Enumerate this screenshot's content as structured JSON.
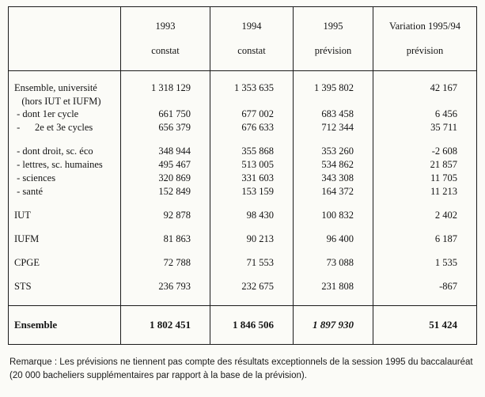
{
  "document": {
    "table": {
      "header": {
        "label_column": "",
        "columns": [
          {
            "line1": "1993",
            "line2": "constat"
          },
          {
            "line1": "1994",
            "line2": "constat"
          },
          {
            "line1": "1995",
            "line2": "prévision"
          },
          {
            "line1": "Variation 1995/94",
            "line2": "prévision"
          }
        ]
      },
      "rows": [
        {
          "label": "Ensemble, université",
          "values": [
            "1 318 129",
            "1 353 635",
            "1 395 802",
            "42 167"
          ],
          "style": "main"
        },
        {
          "label": "   (hors IUT et IUFM)",
          "values": [
            "",
            "",
            "",
            ""
          ],
          "style": "cont"
        },
        {
          "label": " - dont 1er cycle",
          "values": [
            "661 750",
            "677 002",
            "683 458",
            "6 456"
          ],
          "style": "main"
        },
        {
          "label": " -      2e et 3e cycles",
          "values": [
            "656 379",
            "676 633",
            "712 344",
            "35 711"
          ],
          "style": "main"
        },
        {
          "label": "",
          "values": [
            "",
            "",
            "",
            ""
          ],
          "style": "spacer"
        },
        {
          "label": " - dont droit, sc. éco",
          "values": [
            "348 944",
            "355 868",
            "353 260",
            "-2 608"
          ],
          "style": "main"
        },
        {
          "label": " - lettres, sc. humaines",
          "values": [
            "495 467",
            "513 005",
            "534 862",
            "21 857"
          ],
          "style": "main"
        },
        {
          "label": " - sciences",
          "values": [
            "320 869",
            "331 603",
            "343 308",
            "11 705"
          ],
          "style": "main"
        },
        {
          "label": " - santé",
          "values": [
            "152 849",
            "153 159",
            "164 372",
            "11 213"
          ],
          "style": "main"
        },
        {
          "label": "",
          "values": [
            "",
            "",
            "",
            ""
          ],
          "style": "spacer"
        },
        {
          "label": "IUT",
          "values": [
            "92 878",
            "98 430",
            "100 832",
            "2 402"
          ],
          "style": "main"
        },
        {
          "label": "",
          "values": [
            "",
            "",
            "",
            ""
          ],
          "style": "spacer"
        },
        {
          "label": "IUFM",
          "values": [
            "81 863",
            "90 213",
            "96 400",
            "6 187"
          ],
          "style": "main"
        },
        {
          "label": "",
          "values": [
            "",
            "",
            "",
            ""
          ],
          "style": "spacer"
        },
        {
          "label": "CPGE",
          "values": [
            "72 788",
            "71 553",
            "73 088",
            "1 535"
          ],
          "style": "main"
        },
        {
          "label": "",
          "values": [
            "",
            "",
            "",
            ""
          ],
          "style": "spacer"
        },
        {
          "label": "STS",
          "values": [
            "236 793",
            "232 675",
            "231 808",
            "-867"
          ],
          "style": "main"
        }
      ],
      "footer": {
        "label": "Ensemble",
        "values": [
          "1 802 451",
          "1 846 506",
          "1 897 930",
          "51 424"
        ]
      }
    },
    "remark": "Remarque : Les prévisions ne tiennent pas compte des résultats exceptionnels de la session 1995 du baccalauréat (20 000 bacheliers supplémentaires par rapport à la base de la prévision)."
  }
}
